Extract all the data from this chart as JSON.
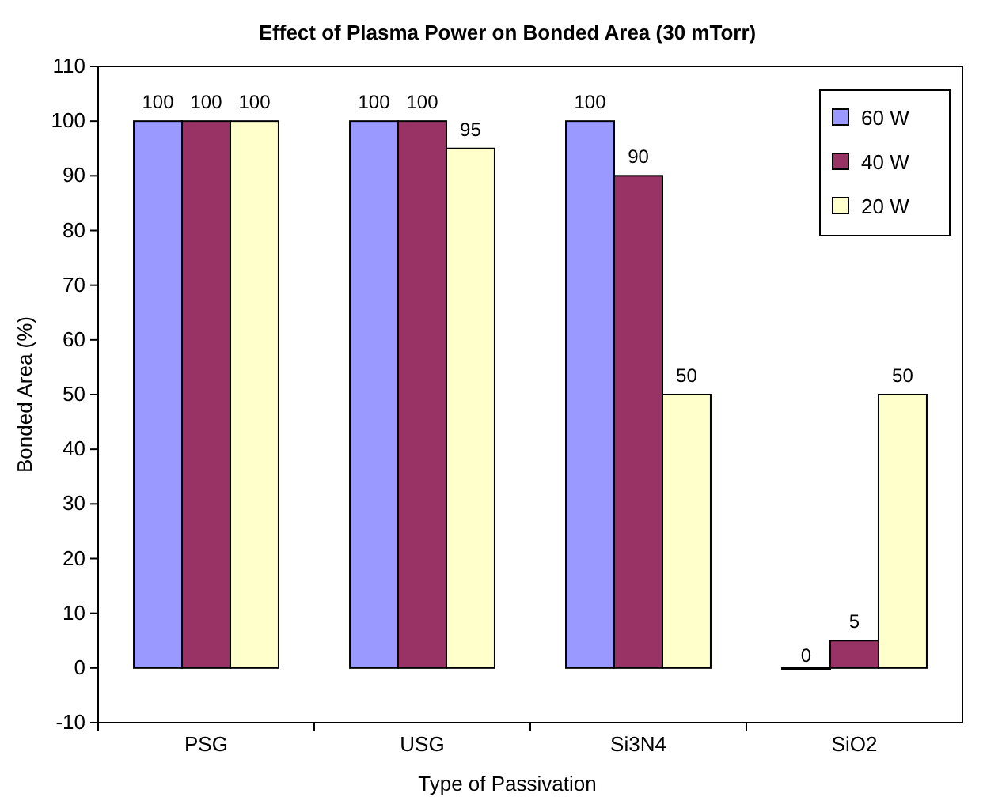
{
  "chart_data": {
    "type": "bar",
    "title": "Effect of Plasma Power on Bonded Area (30 mTorr)",
    "xlabel": "Type of Passivation",
    "ylabel": "Bonded Area (%)",
    "categories": [
      "PSG",
      "USG",
      "Si3N4",
      "SiO2"
    ],
    "series": [
      {
        "name": "60 W",
        "color": "#9999ff",
        "values": [
          100,
          100,
          100,
          0
        ]
      },
      {
        "name": "40 W",
        "color": "#993366",
        "values": [
          100,
          100,
          90,
          5
        ]
      },
      {
        "name": "20 W",
        "color": "#ffffcc",
        "values": [
          100,
          95,
          50,
          50
        ]
      }
    ],
    "ylim": [
      -10,
      110
    ],
    "yticks": [
      -10,
      0,
      10,
      20,
      30,
      40,
      50,
      60,
      70,
      80,
      90,
      100,
      110
    ],
    "grid": false,
    "legend": "top right",
    "data_labels": true
  }
}
